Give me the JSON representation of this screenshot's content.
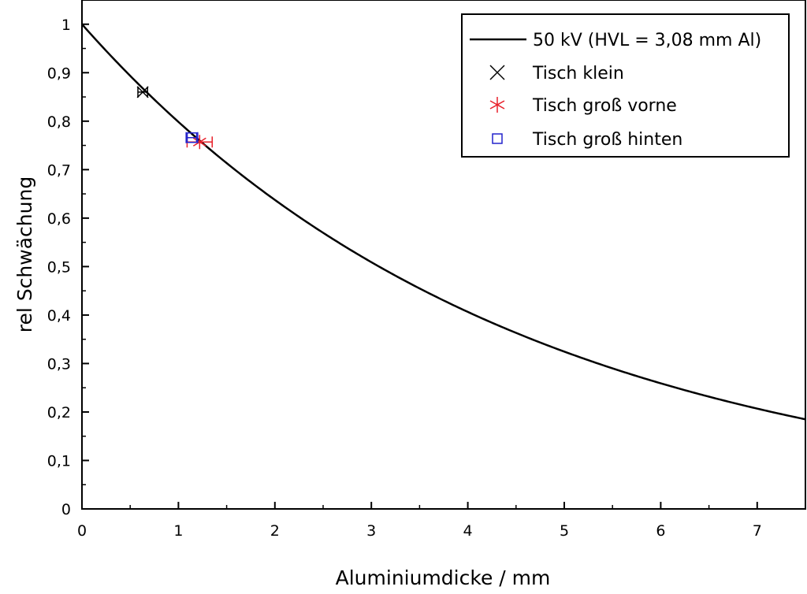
{
  "chart_data": {
    "type": "scatter",
    "title": "",
    "xlabel": "Aluminiumdicke / mm",
    "ylabel": "rel Schwächung",
    "xlim": [
      0,
      7.5
    ],
    "ylim": [
      0,
      1.05
    ],
    "xticks": [
      0,
      1,
      2,
      3,
      4,
      5,
      6,
      7
    ],
    "xtick_labels": [
      "0",
      "1",
      "2",
      "3",
      "4",
      "5",
      "6",
      "7"
    ],
    "yticks": [
      0,
      0.1,
      0.2,
      0.3,
      0.4,
      0.5,
      0.6,
      0.7,
      0.8,
      0.9,
      1.0
    ],
    "ytick_labels": [
      "0",
      "0,1",
      "0,2",
      "0,3",
      "0,4",
      "0,5",
      "0,6",
      "0,7",
      "0,8",
      "0,9",
      "1"
    ],
    "grid": false,
    "legend_position": "top-right",
    "fit": {
      "name": "50 kV (HVL = 3,08 mm Al)",
      "hvl": 3.08,
      "color": "#000000"
    },
    "series": [
      {
        "name": "Tisch klein",
        "marker": "x",
        "color": "#000000",
        "points": [
          {
            "x": 0.63,
            "y": 0.86,
            "xerr": 0.05
          }
        ]
      },
      {
        "name": "Tisch groß vorne",
        "marker": "asterisk",
        "color": "#e8202a",
        "points": [
          {
            "x": 1.22,
            "y": 0.757,
            "xerr": 0.13
          }
        ]
      },
      {
        "name": "Tisch groß hinten",
        "marker": "square",
        "color": "#2222cc",
        "points": [
          {
            "x": 1.14,
            "y": 0.766,
            "xerr": 0.06
          }
        ]
      }
    ]
  }
}
